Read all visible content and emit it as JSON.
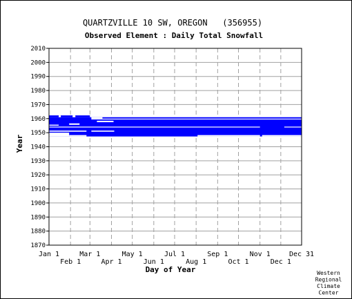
{
  "chart_data": {
    "type": "heatmap",
    "title": "QUARTZVILLE 10 SW, OREGON   (356955)",
    "subtitle": "Observed Element : Daily Total Snowfall",
    "xlabel": "Day of Year",
    "ylabel": "Year",
    "ylim": [
      1870,
      2010
    ],
    "y_ticks": [
      1870,
      1880,
      1890,
      1900,
      1910,
      1920,
      1930,
      1940,
      1950,
      1960,
      1970,
      1980,
      1990,
      2000,
      2010
    ],
    "x_ticks_top_row": [
      {
        "label": "Jan 1",
        "day": 1
      },
      {
        "label": "Mar 1",
        "day": 60
      },
      {
        "label": "May 1",
        "day": 121
      },
      {
        "label": "Jul 1",
        "day": 182
      },
      {
        "label": "Sep 1",
        "day": 244
      },
      {
        "label": "Nov 1",
        "day": 305
      },
      {
        "label": "Dec 31",
        "day": 365
      }
    ],
    "x_ticks_bottom_row": [
      {
        "label": "Feb 1",
        "day": 32
      },
      {
        "label": "Apr 1",
        "day": 91
      },
      {
        "label": "Jun 1",
        "day": 152
      },
      {
        "label": "Aug 1",
        "day": 213
      },
      {
        "label": "Oct 1",
        "day": 274
      },
      {
        "label": "Dec 1",
        "day": 335
      }
    ],
    "grid": true,
    "color": "#0000ff",
    "observed_blocks": [
      {
        "year_start": 1947.3,
        "year_end": 1961.0,
        "day_start": 1,
        "day_end": 365
      },
      {
        "year_start": 1961.0,
        "year_end": 1962.3,
        "day_start": 1,
        "day_end": 60
      }
    ],
    "missing_blocks": [
      {
        "year_start": 1947.3,
        "year_end": 1950.0,
        "day_start": 1,
        "day_end": 30
      },
      {
        "year_start": 1947.3,
        "year_end": 1948.3,
        "day_start": 30,
        "day_end": 55
      },
      {
        "year_start": 1947.3,
        "year_end": 1948.3,
        "day_start": 215,
        "day_end": 305
      },
      {
        "year_start": 1947.3,
        "year_end": 1948.3,
        "day_start": 308,
        "day_end": 365
      },
      {
        "year_start": 1950.7,
        "year_end": 1951.5,
        "day_start": 1,
        "day_end": 55
      },
      {
        "year_start": 1950.7,
        "year_end": 1951.5,
        "day_start": 62,
        "day_end": 95
      },
      {
        "year_start": 1953.7,
        "year_end": 1954.3,
        "day_start": 1,
        "day_end": 305
      },
      {
        "year_start": 1953.7,
        "year_end": 1954.3,
        "day_start": 340,
        "day_end": 365
      },
      {
        "year_start": 1955.0,
        "year_end": 1955.7,
        "day_start": 1,
        "day_end": 15
      },
      {
        "year_start": 1955.6,
        "year_end": 1956.6,
        "day_start": 30,
        "day_end": 45
      },
      {
        "year_start": 1957.5,
        "year_end": 1958.5,
        "day_start": 70,
        "day_end": 94
      },
      {
        "year_start": 1959.4,
        "year_end": 1960.0,
        "day_start": 62,
        "day_end": 365
      },
      {
        "year_start": 1960.0,
        "year_end": 1961.0,
        "day_start": 62,
        "day_end": 78
      },
      {
        "year_start": 1961.0,
        "year_end": 1962.3,
        "day_start": 15,
        "day_end": 18
      },
      {
        "year_start": 1961.0,
        "year_end": 1962.3,
        "day_start": 35,
        "day_end": 39
      }
    ]
  },
  "credit": [
    "Western",
    "Regional",
    "Climate",
    "Center"
  ]
}
